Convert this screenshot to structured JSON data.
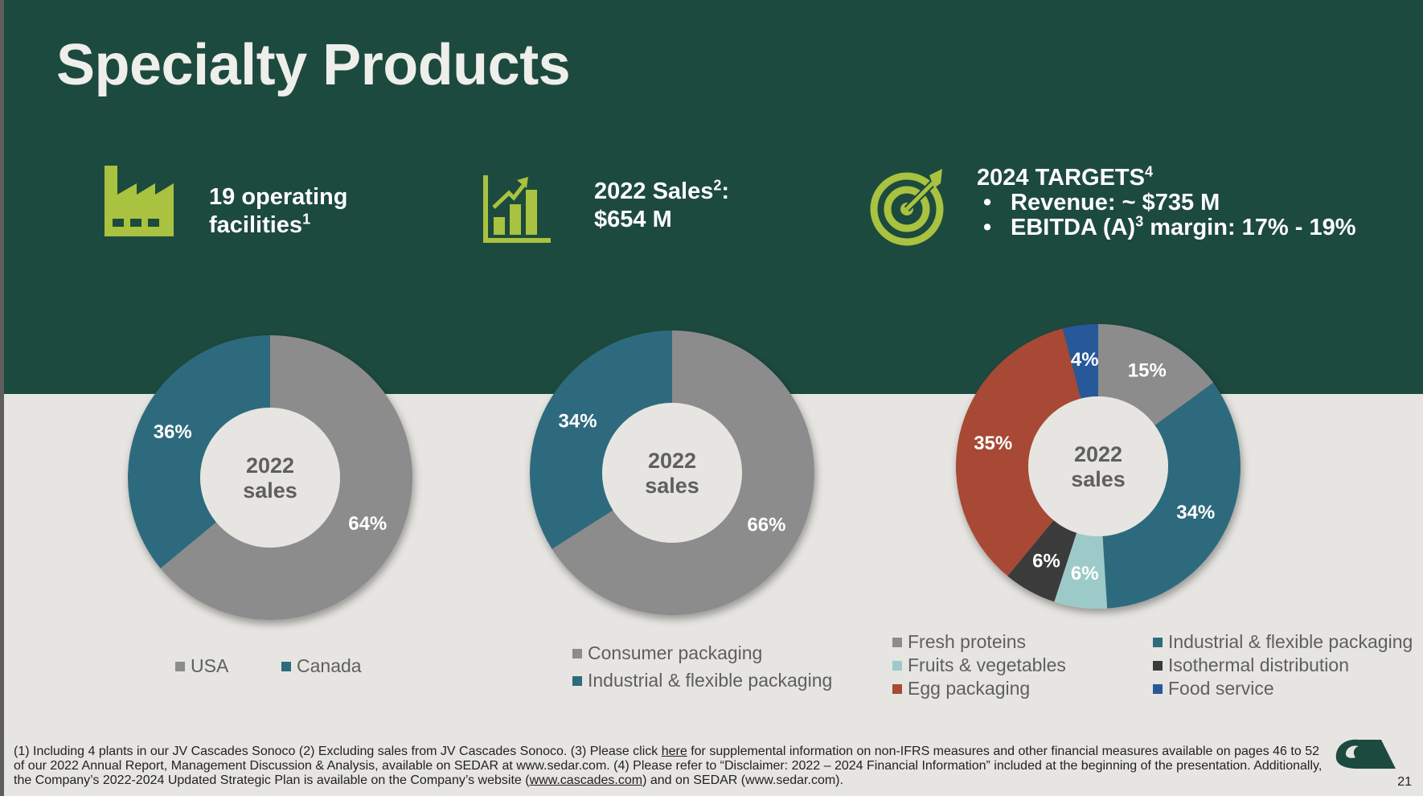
{
  "slide": {
    "title": "Specialty Products",
    "page_number": "21"
  },
  "kpis": {
    "facilities": {
      "line1": "19 operating",
      "line2": "facilities",
      "sup": "1",
      "icon": "factory-icon"
    },
    "sales": {
      "line1": "2022 Sales",
      "sup1": "2",
      "colon": ":",
      "line2": "$654 M",
      "icon": "bar-chart-growth-icon"
    },
    "targets": {
      "heading": "2024 TARGETS",
      "sup": "4",
      "bullet_char": "•",
      "revenue": "Revenue: ~ $735 M",
      "ebitda_pre": "EBITDA (A)",
      "ebitda_sup": "3",
      "ebitda_post": " margin: 17% - 19%",
      "icon": "target-icon"
    }
  },
  "colors": {
    "band": "#1d4a3e",
    "background": "#e6e5e1",
    "accent": "#a9c23f",
    "gray": "#8c8c8c",
    "teal": "#2e6b7d",
    "light_teal": "#9ccac9",
    "dark": "#3b3b3b",
    "red": "#a84a35",
    "blue": "#27599a"
  },
  "chart_data": [
    {
      "type": "pie",
      "donut": true,
      "center_label": [
        "2022",
        "sales"
      ],
      "categories": [
        "USA",
        "Canada"
      ],
      "values": [
        64,
        36
      ],
      "labels": [
        "64%",
        "36%"
      ],
      "colors": [
        "#8c8c8c",
        "#2e6b7d"
      ],
      "legend_placement": "bottom"
    },
    {
      "type": "pie",
      "donut": true,
      "center_label": [
        "2022",
        "sales"
      ],
      "categories": [
        "Consumer packaging",
        "Industrial & flexible packaging"
      ],
      "values": [
        66,
        34
      ],
      "labels": [
        "66%",
        "34%"
      ],
      "colors": [
        "#8c8c8c",
        "#2e6b7d"
      ],
      "legend_placement": "bottom"
    },
    {
      "type": "pie",
      "donut": true,
      "center_label": [
        "2022",
        "sales"
      ],
      "categories": [
        "Fresh proteins",
        "Industrial & flexible packaging",
        "Fruits & vegetables",
        "Isothermal distribution",
        "Egg packaging",
        "Food service"
      ],
      "values": [
        15,
        34,
        6,
        6,
        35,
        4
      ],
      "labels": [
        "15%",
        "34%",
        "6%",
        "6%",
        "35%",
        "4%"
      ],
      "colors": [
        "#8c8c8c",
        "#2e6b7d",
        "#9ccac9",
        "#3b3b3b",
        "#a84a35",
        "#27599a"
      ],
      "legend_placement": "bottom"
    }
  ],
  "footer": {
    "part1": "(1) Including 4 plants in our JV Cascades Sonoco (2) Excluding sales from JV Cascades Sonoco. (3) Please click ",
    "link_here": "here",
    "part2": " for supplemental information on non-IFRS measures and other financial measures available on pages 46 to 52 of our 2022 Annual Report, Management Discussion & Analysis, available on SEDAR at www.sedar.com. (4) Please refer to “Disclaimer: 2022 – 2024 Financial Information” included at the beginning of the presentation. Additionally, the Company’s 2022-2024 Updated Strategic Plan is available on the Company’s website (",
    "link_site": "www.cascades.com",
    "part3": ") and on SEDAR (www.sedar.com)."
  }
}
